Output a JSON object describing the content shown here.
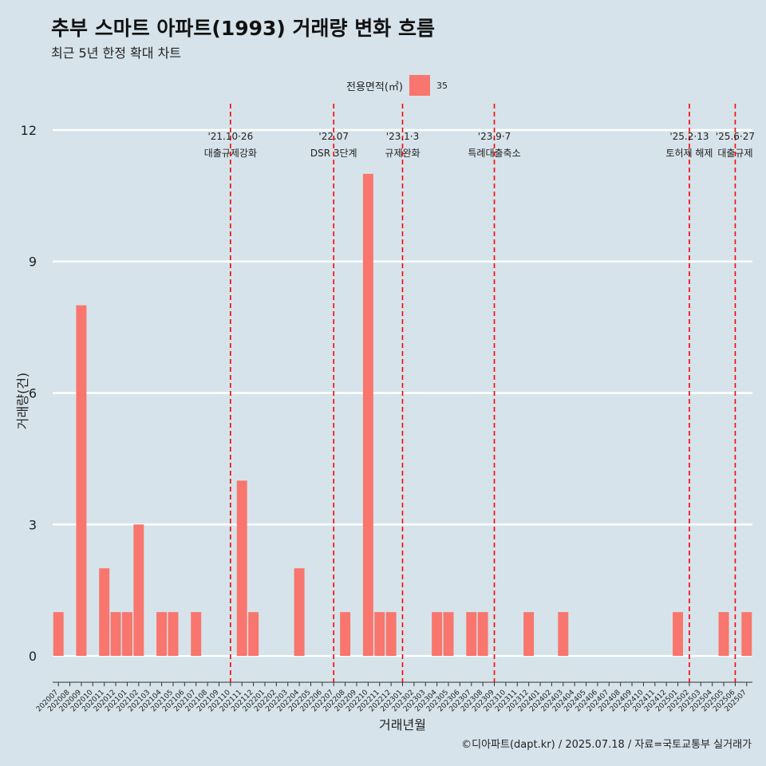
{
  "header": {
    "title": "추부 스마트 아파트(1993) 거래량 변화 흐름",
    "subtitle": "최근 5년 한정 확대 차트"
  },
  "legend": {
    "title": "전용면적(㎡)",
    "label": "35"
  },
  "caption": "©디아파트(dapt.kr) / 2025.07.18 / 자료=국토교통부 실거래가",
  "chart_data": {
    "type": "bar",
    "xlabel": "거래년월",
    "ylabel": "거래량(건)",
    "ylim": [
      -0.6,
      12.6
    ],
    "yticks": [
      0,
      3,
      6,
      9,
      12
    ],
    "grid": true,
    "legend_position": "top",
    "colors": {
      "bar": "#f8766d",
      "event_line": "#ff0000",
      "background": "#d6e3ea",
      "grid": "#ffffff"
    },
    "categories": [
      "202007",
      "202008",
      "202009",
      "202010",
      "202011",
      "202012",
      "202101",
      "202102",
      "202103",
      "202104",
      "202105",
      "202106",
      "202107",
      "202108",
      "202109",
      "202110",
      "202111",
      "202112",
      "202201",
      "202202",
      "202203",
      "202204",
      "202205",
      "202206",
      "202207",
      "202208",
      "202209",
      "202210",
      "202211",
      "202212",
      "202301",
      "202302",
      "202303",
      "202304",
      "202305",
      "202306",
      "202307",
      "202308",
      "202309",
      "202310",
      "202311",
      "202312",
      "202401",
      "202402",
      "202403",
      "202404",
      "202405",
      "202406",
      "202407",
      "202408",
      "202409",
      "202410",
      "202411",
      "202412",
      "202501",
      "202502",
      "202503",
      "202504",
      "202505",
      "202506",
      "202507"
    ],
    "series": [
      {
        "name": "35",
        "values": [
          1,
          0,
          8,
          0,
          2,
          1,
          1,
          3,
          0,
          1,
          1,
          0,
          1,
          0,
          0,
          0,
          4,
          1,
          0,
          0,
          0,
          2,
          0,
          0,
          0,
          1,
          0,
          11,
          1,
          1,
          0,
          0,
          0,
          1,
          1,
          0,
          1,
          1,
          0,
          0,
          0,
          1,
          0,
          0,
          1,
          0,
          0,
          0,
          0,
          0,
          0,
          0,
          0,
          0,
          1,
          0,
          0,
          0,
          1,
          0,
          1
        ]
      }
    ],
    "events": [
      {
        "month": "202110",
        "date": "'21.10·26",
        "label": "대출규제강화"
      },
      {
        "month": "202207",
        "date": "'22.07",
        "label": "DSR 3단계"
      },
      {
        "month": "202301",
        "date": "'23.1·3",
        "label": "규제완화"
      },
      {
        "month": "202309",
        "date": "'23.9·7",
        "label": "특례대출축소"
      },
      {
        "month": "202502",
        "date": "'25.2·13",
        "label": "토허제 해제"
      },
      {
        "month": "202506",
        "date": "'25.6·27",
        "label": "대출규제"
      }
    ]
  }
}
